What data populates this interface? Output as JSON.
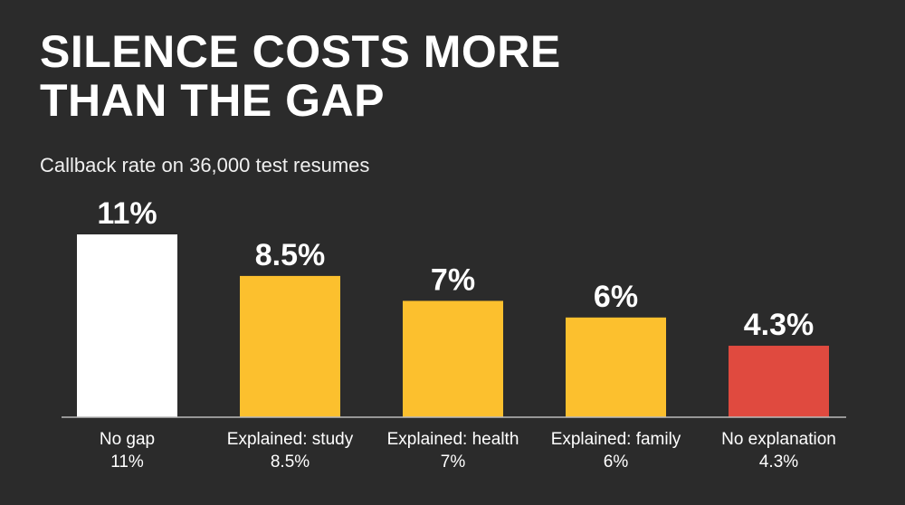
{
  "chart_data": {
    "type": "bar",
    "title": "SILENCE COSTS MORE\nTHAN THE GAP",
    "subtitle": "Callback rate on 36,000 test resumes",
    "xlabel": "",
    "ylabel": "",
    "unit": "%",
    "ylim": [
      0,
      11
    ],
    "grid": false,
    "categories": [
      "No gap",
      "Explained: study",
      "Explained: health",
      "Explained: family",
      "No explanation"
    ],
    "values": [
      11,
      8.5,
      7,
      6,
      4.3
    ],
    "value_labels": [
      "11%",
      "8.5%",
      "7%",
      "6%",
      "4.3%"
    ],
    "colors": [
      "#ffffff",
      "#fcc02e",
      "#fcc02e",
      "#fcc02e",
      "#e04a3f"
    ]
  },
  "colors": {
    "background": "#2b2b2b",
    "text": "#ffffff",
    "baseline": "#bbbbbb"
  }
}
